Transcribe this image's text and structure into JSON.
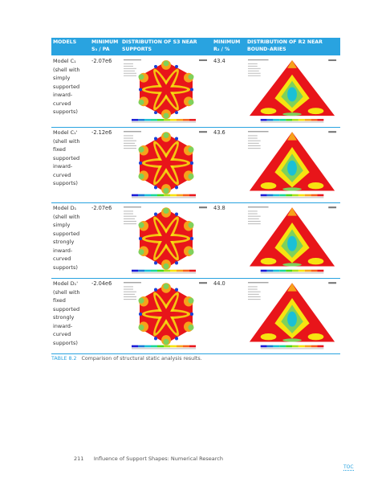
{
  "header": {
    "columns": [
      "MODELS",
      "MINIMUM S₃ / PA",
      "DISTRIBUTION OF S3 NEAR SUPPORTS",
      "MINIMUM R₂ / %",
      "DISTRIBUTION OF R2 NEAR BOUND-ARIES"
    ]
  },
  "table": {
    "rows": [
      [
        "Model C₁ (shell with simply supported inward-curved supports)",
        "-2.07e6",
        "43.4"
      ],
      [
        "Model C₁' (shell with fixed supported inward-curved supports)",
        "-2.12e6",
        "43.6"
      ],
      [
        "Model D₁ (shell with simply supported strongly inward-curved supports)",
        "-2.07e6",
        "43.8"
      ],
      [
        "Model D₁' (shell with fixed supported strongly inward-curved supports)",
        "-2.04e6",
        "44.0"
      ]
    ]
  },
  "caption": {
    "label": "TABLE 8.2",
    "text": "Comparison of structural static analysis results."
  },
  "footer": {
    "page": "211",
    "title": "Influence of Support Shapes: Numerical Research",
    "toc": "TOC"
  }
}
